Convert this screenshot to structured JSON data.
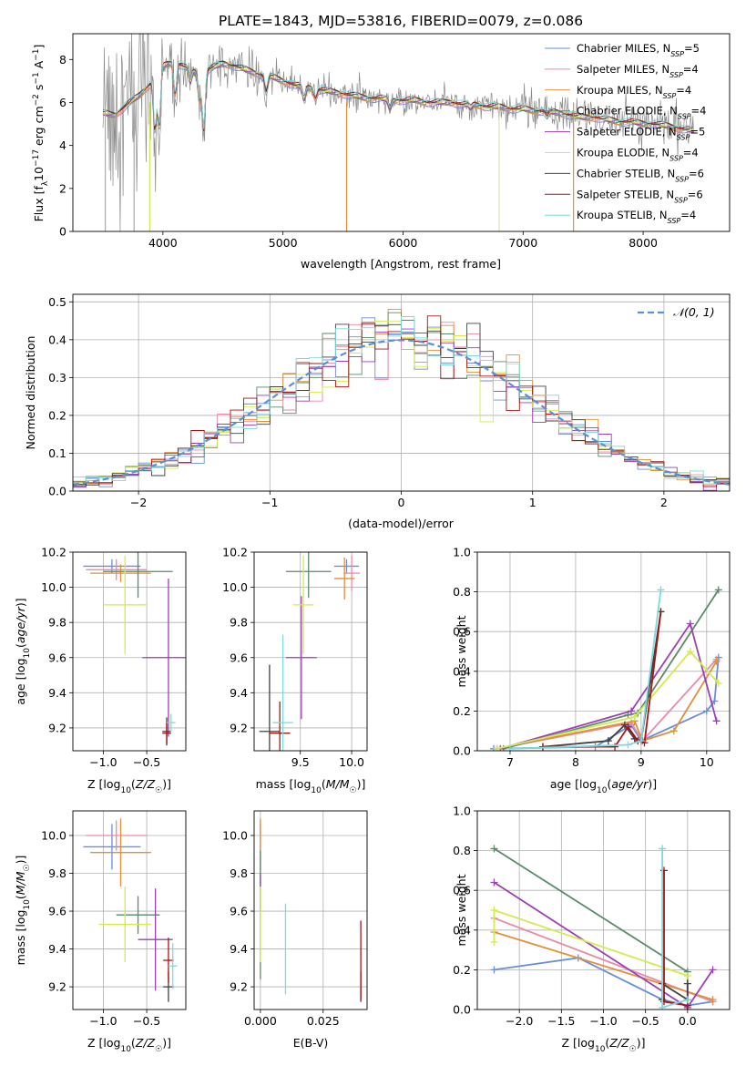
{
  "figure_title": "PLATE=1843, MJD=53816, FIBERID=0079, z=0.086",
  "colors": {
    "Chabrier MILES": "#6a8fd8",
    "Salpeter MILES": "#e98aa8",
    "Kroupa MILES": "#e0903a",
    "Chabrier ELODIE": "#5a8a6a",
    "Salpeter ELODIE": "#9b3fb5",
    "Kroupa ELODIE": "#d4ea4e",
    "Chabrier STELIB": "#404040",
    "Salpeter STELIB": "#a31515",
    "Kroupa STELIB": "#7fd8dc",
    "data": "#8a8a8a",
    "normal": "#5b8fd8"
  },
  "chart_data": [
    {
      "id": "spectrum",
      "type": "line",
      "xlabel": "wavelength [Angstrom, rest frame]",
      "ylabel": "Flux [f_λ 10^-17 erg cm^-2 s^-1 A^-1]",
      "xlim": [
        3250,
        8720
      ],
      "ylim": [
        0,
        9.2
      ],
      "xticks": [
        4000,
        5000,
        6000,
        7000,
        8000
      ],
      "yticks": [
        0,
        2,
        4,
        6,
        8
      ],
      "grid": false,
      "legend_position": "top-right",
      "legend": [
        {
          "label": "Chabrier MILES, N_SSP=5",
          "base": "Chabrier MILES, N",
          "sub": "SSP",
          "tail": "=5",
          "series": "Chabrier MILES"
        },
        {
          "label": "Salpeter MILES, N_SSP=4",
          "base": "Salpeter MILES, N",
          "sub": "SSP",
          "tail": "=4",
          "series": "Salpeter MILES"
        },
        {
          "label": "Kroupa MILES, N_SSP=4",
          "base": "Kroupa MILES, N",
          "sub": "SSP",
          "tail": "=4",
          "series": "Kroupa MILES"
        },
        {
          "label": "Chabrier ELODIE, N_SSP=4",
          "base": "Chabrier ELODIE, N",
          "sub": "SSP",
          "tail": "=4",
          "series": "Chabrier ELODIE"
        },
        {
          "label": "Salpeter ELODIE, N_SSP=5",
          "base": "Salpeter ELODIE, N",
          "sub": "SSP",
          "tail": "=5",
          "series": "Salpeter ELODIE"
        },
        {
          "label": "Kroupa ELODIE, N_SSP=4",
          "base": "Kroupa ELODIE, N",
          "sub": "SSP",
          "tail": "=4",
          "series": "Kroupa ELODIE"
        },
        {
          "label": "Chabrier STELIB, N_SSP=6",
          "base": "Chabrier STELIB, N",
          "sub": "SSP",
          "tail": "=6",
          "series": "Chabrier STELIB"
        },
        {
          "label": "Salpeter STELIB, N_SSP=6",
          "base": "Salpeter STELIB, N",
          "sub": "SSP",
          "tail": "=6",
          "series": "Salpeter STELIB"
        },
        {
          "label": "Kroupa STELIB, N_SSP=4",
          "base": "Kroupa STELIB, N",
          "sub": "SSP",
          "tail": "=4",
          "series": "Kroupa STELIB"
        }
      ],
      "model_continuum": [
        [
          3500,
          5.5
        ],
        [
          3600,
          5.4
        ],
        [
          3700,
          5.9
        ],
        [
          3800,
          6.3
        ],
        [
          3900,
          6.9
        ],
        [
          4000,
          7.7
        ],
        [
          4100,
          7.9
        ],
        [
          4200,
          7.6
        ],
        [
          4300,
          7.3
        ],
        [
          4400,
          7.6
        ],
        [
          4500,
          7.8
        ],
        [
          4600,
          7.7
        ],
        [
          4700,
          7.5
        ],
        [
          4800,
          7.3
        ],
        [
          4900,
          7.2
        ],
        [
          5000,
          7.0
        ],
        [
          5100,
          6.8
        ],
        [
          5200,
          6.7
        ],
        [
          5300,
          6.6
        ],
        [
          5400,
          6.5
        ],
        [
          5500,
          6.4
        ],
        [
          5600,
          6.3
        ],
        [
          5700,
          6.2
        ],
        [
          5800,
          6.2
        ],
        [
          5900,
          6.1
        ],
        [
          6000,
          6.1
        ],
        [
          6100,
          6.1
        ],
        [
          6200,
          6.0
        ],
        [
          6300,
          6.0
        ],
        [
          6400,
          6.0
        ],
        [
          6500,
          5.9
        ],
        [
          6600,
          5.9
        ],
        [
          6700,
          5.8
        ],
        [
          6800,
          5.8
        ],
        [
          6900,
          5.7
        ],
        [
          7000,
          5.7
        ],
        [
          7100,
          5.6
        ],
        [
          7200,
          5.6
        ],
        [
          7300,
          5.5
        ],
        [
          7400,
          5.4
        ],
        [
          7500,
          5.3
        ],
        [
          7600,
          5.3
        ],
        [
          7700,
          5.2
        ],
        [
          7800,
          5.1
        ],
        [
          7900,
          5.1
        ],
        [
          8000,
          5.0
        ],
        [
          8100,
          5.0
        ],
        [
          8200,
          4.9
        ],
        [
          8300,
          4.8
        ],
        [
          8400,
          4.7
        ]
      ],
      "absorption_features": [
        [
          3934,
          4.0
        ],
        [
          3969,
          4.2
        ],
        [
          4102,
          6.0
        ],
        [
          4227,
          6.8
        ],
        [
          4304,
          5.8
        ],
        [
          4340,
          4.0
        ],
        [
          4861,
          6.3
        ],
        [
          5175,
          6.0
        ],
        [
          5270,
          6.1
        ],
        [
          5890,
          5.6
        ],
        [
          6563,
          5.7
        ],
        [
          7200,
          5.3
        ]
      ],
      "masked_drops": [
        3520,
        3760,
        3890,
        5530,
        6800,
        7420
      ]
    },
    {
      "id": "residuals",
      "type": "bar",
      "xlabel": "(data-model)/error",
      "ylabel": "Normed distribution",
      "xlim": [
        -2.5,
        2.5
      ],
      "ylim": [
        0,
        0.52
      ],
      "xticks": [
        -2,
        -1,
        0,
        1,
        2
      ],
      "yticks": [
        0.0,
        0.1,
        0.2,
        0.3,
        0.4,
        0.5
      ],
      "grid": true,
      "bin_width": 0.1,
      "legend_position": "top-right",
      "legend": [
        {
          "label": "𝒩(0, 1)",
          "series": "normal"
        }
      ]
    },
    {
      "id": "age-vs-z",
      "type": "scatter",
      "xlabel": "Z [log10(Z/Z☉)]",
      "ylabel": "age  [log10(age/yr)]",
      "xlim": [
        -1.35,
        -0.05
      ],
      "ylim": [
        9.07,
        10.2
      ],
      "xticks": [
        -1.0,
        -0.5
      ],
      "yticks": [
        9.2,
        9.4,
        9.6,
        9.8,
        10.0,
        10.2
      ],
      "grid": true,
      "points": [
        {
          "series": "Chabrier MILES",
          "x": -0.9,
          "y": 10.12,
          "xerr": 0.33,
          "yerr": 0.04
        },
        {
          "series": "Salpeter MILES",
          "x": -0.85,
          "y": 10.1,
          "xerr": 0.35,
          "yerr": 0.06
        },
        {
          "series": "Kroupa MILES",
          "x": -0.8,
          "y": 10.08,
          "xerr": 0.35,
          "yerr": 0.05
        },
        {
          "series": "Chabrier ELODIE",
          "x": -0.6,
          "y": 10.09,
          "xerr": 0.4,
          "yerr": 0.15
        },
        {
          "series": "Salpeter ELODIE",
          "x": -0.25,
          "y": 9.6,
          "xerr": 0.3,
          "yerr": 0.45
        },
        {
          "series": "Kroupa ELODIE",
          "x": -0.75,
          "y": 9.9,
          "xerr": 0.25,
          "yerr": 0.28
        },
        {
          "series": "Chabrier STELIB",
          "x": -0.27,
          "y": 9.18,
          "xerr": 0.05,
          "yerr": 0.08
        },
        {
          "series": "Salpeter STELIB",
          "x": -0.27,
          "y": 9.17,
          "xerr": 0.05,
          "yerr": 0.06
        },
        {
          "series": "Kroupa STELIB",
          "x": -0.22,
          "y": 9.23,
          "xerr": 0.05,
          "yerr": 0.05
        }
      ]
    },
    {
      "id": "age-vs-mass",
      "type": "scatter",
      "xlabel": "mass [log10(M/M☉)]",
      "ylabel": "",
      "xlim": [
        9.05,
        10.15
      ],
      "ylim": [
        9.07,
        10.2
      ],
      "xticks": [
        9.5,
        10.0
      ],
      "yticks": [
        9.2,
        9.4,
        9.6,
        9.8,
        10.0,
        10.2
      ],
      "grid": true,
      "points": [
        {
          "series": "Chabrier MILES",
          "x": 9.95,
          "y": 10.12,
          "xerr": 0.12,
          "yerr": 0.04
        },
        {
          "series": "Salpeter MILES",
          "x": 10.0,
          "y": 10.08,
          "xerr": 0.08,
          "yerr": 0.1
        },
        {
          "series": "Kroupa MILES",
          "x": 9.93,
          "y": 10.05,
          "xerr": 0.1,
          "yerr": 0.12
        },
        {
          "series": "Chabrier ELODIE",
          "x": 9.58,
          "y": 10.09,
          "xerr": 0.22,
          "yerr": 0.15
        },
        {
          "series": "Salpeter ELODIE",
          "x": 9.51,
          "y": 9.6,
          "xerr": 0.15,
          "yerr": 0.35
        },
        {
          "series": "Kroupa ELODIE",
          "x": 9.53,
          "y": 9.9,
          "xerr": 0.1,
          "yerr": 0.28
        },
        {
          "series": "Chabrier STELIB",
          "x": 9.2,
          "y": 9.18,
          "xerr": 0.1,
          "yerr": 0.38
        },
        {
          "series": "Salpeter STELIB",
          "x": 9.3,
          "y": 9.17,
          "xerr": 0.1,
          "yerr": 0.18
        },
        {
          "series": "Kroupa STELIB",
          "x": 9.33,
          "y": 9.23,
          "xerr": 0.1,
          "yerr": 0.5
        }
      ]
    },
    {
      "id": "weight-vs-age",
      "type": "line",
      "xlabel": "age  [log10(age/yr)]",
      "ylabel": "mass weight",
      "xlim": [
        6.5,
        10.35
      ],
      "ylim": [
        0,
        1.0
      ],
      "xticks": [
        7,
        8,
        9,
        10
      ],
      "yticks": [
        0.0,
        0.2,
        0.4,
        0.6,
        0.8,
        1.0
      ],
      "grid": true,
      "series": [
        {
          "name": "Chabrier MILES",
          "x": [
            6.75,
            8.3,
            8.85,
            9.0,
            10.0,
            10.12,
            10.18
          ],
          "y": [
            0.01,
            0.02,
            0.13,
            0.05,
            0.2,
            0.25,
            0.47
          ]
        },
        {
          "name": "Salpeter MILES",
          "x": [
            6.8,
            8.85,
            9.02,
            10.15
          ],
          "y": [
            0.01,
            0.14,
            0.05,
            0.46
          ]
        },
        {
          "name": "Kroupa MILES",
          "x": [
            6.8,
            8.9,
            9.02,
            9.5,
            10.15
          ],
          "y": [
            0.01,
            0.15,
            0.05,
            0.1,
            0.45
          ]
        },
        {
          "name": "Chabrier ELODIE",
          "x": [
            6.9,
            8.8,
            8.95,
            10.18
          ],
          "y": [
            0.01,
            0.18,
            0.19,
            0.81
          ]
        },
        {
          "name": "Salpeter ELODIE",
          "x": [
            6.85,
            8.85,
            9.75,
            10.15
          ],
          "y": [
            0.01,
            0.2,
            0.64,
            0.15
          ]
        },
        {
          "name": "Kroupa ELODIE",
          "x": [
            6.8,
            8.9,
            9.75,
            10.18
          ],
          "y": [
            0.01,
            0.17,
            0.5,
            0.34
          ]
        },
        {
          "name": "Chabrier STELIB",
          "x": [
            7.5,
            8.5,
            8.75,
            8.9,
            9.0,
            9.3
          ],
          "y": [
            0.02,
            0.05,
            0.13,
            0.06,
            0.05,
            0.7
          ]
        },
        {
          "name": "Salpeter STELIB",
          "x": [
            7.5,
            8.6,
            8.8,
            8.95,
            9.05,
            9.3
          ],
          "y": [
            0.02,
            0.02,
            0.12,
            0.05,
            0.04,
            0.7
          ]
        },
        {
          "name": "Kroupa STELIB",
          "x": [
            7.0,
            8.8,
            9.0,
            9.3
          ],
          "y": [
            0.01,
            0.03,
            0.05,
            0.81
          ]
        }
      ]
    },
    {
      "id": "mass-vs-z",
      "type": "scatter",
      "xlabel": "Z [log10(Z/Z☉)]",
      "ylabel": "mass [log10(M/M☉)]",
      "xlim": [
        -1.35,
        -0.05
      ],
      "ylim": [
        9.08,
        10.13
      ],
      "xticks": [
        -1.0,
        -0.5
      ],
      "yticks": [
        9.2,
        9.4,
        9.6,
        9.8,
        10.0
      ],
      "grid": true,
      "points": [
        {
          "series": "Chabrier MILES",
          "x": -0.9,
          "y": 9.94,
          "xerr": 0.33,
          "yerr": 0.12
        },
        {
          "series": "Salpeter MILES",
          "x": -0.85,
          "y": 10.0,
          "xerr": 0.35,
          "yerr": 0.08
        },
        {
          "series": "Kroupa MILES",
          "x": -0.8,
          "y": 9.91,
          "xerr": 0.35,
          "yerr": 0.18
        },
        {
          "series": "Chabrier ELODIE",
          "x": -0.6,
          "y": 9.58,
          "xerr": 0.25,
          "yerr": 0.1
        },
        {
          "series": "Salpeter ELODIE",
          "x": -0.4,
          "y": 9.45,
          "xerr": 0.2,
          "yerr": 0.27
        },
        {
          "series": "Kroupa ELODIE",
          "x": -0.75,
          "y": 9.53,
          "xerr": 0.3,
          "yerr": 0.2
        },
        {
          "series": "Chabrier STELIB",
          "x": -0.25,
          "y": 9.2,
          "xerr": 0.06,
          "yerr": 0.08
        },
        {
          "series": "Salpeter STELIB",
          "x": -0.25,
          "y": 9.34,
          "xerr": 0.06,
          "yerr": 0.12
        },
        {
          "series": "Kroupa STELIB",
          "x": -0.2,
          "y": 9.31,
          "xerr": 0.05,
          "yerr": 0.12
        }
      ]
    },
    {
      "id": "mass-vs-ebv",
      "type": "scatter",
      "xlabel": "E(B-V)",
      "ylabel": "",
      "xlim": [
        -0.0025,
        0.0425
      ],
      "ylim": [
        9.08,
        10.13
      ],
      "xticks": [
        0.0,
        0.025
      ],
      "xtick_labels": [
        "0.000",
        "0.025"
      ],
      "yticks": [
        9.2,
        9.4,
        9.6,
        9.8,
        10.0
      ],
      "grid": true,
      "points": [
        {
          "series": "Chabrier MILES",
          "x": 0.0,
          "y": 9.94,
          "xerr": 0,
          "yerr": 0.12
        },
        {
          "series": "Salpeter MILES",
          "x": 0.0,
          "y": 10.0,
          "xerr": 0,
          "yerr": 0.08
        },
        {
          "series": "Kroupa MILES",
          "x": 0.0,
          "y": 9.91,
          "xerr": 0,
          "yerr": 0.18
        },
        {
          "series": "Chabrier ELODIE",
          "x": 0.0,
          "y": 9.58,
          "xerr": 0,
          "yerr": 0.34
        },
        {
          "series": "Salpeter ELODIE",
          "x": 0.0,
          "y": 9.7,
          "xerr": 0,
          "yerr": 0.1
        },
        {
          "series": "Kroupa ELODIE",
          "x": 0.0,
          "y": 9.53,
          "xerr": 0,
          "yerr": 0.2
        },
        {
          "series": "Chabrier STELIB",
          "x": 0.04,
          "y": 9.2,
          "xerr": 0,
          "yerr": 0.08
        },
        {
          "series": "Salpeter STELIB",
          "x": 0.04,
          "y": 9.34,
          "xerr": 0,
          "yerr": 0.21
        },
        {
          "series": "Kroupa STELIB",
          "x": 0.01,
          "y": 9.4,
          "xerr": 0,
          "yerr": 0.24
        }
      ]
    },
    {
      "id": "weight-vs-z",
      "type": "line",
      "xlabel": "Z [log10(Z/Z☉)]",
      "ylabel": "mass weight",
      "xlim": [
        -2.5,
        0.5
      ],
      "ylim": [
        0,
        1.0
      ],
      "xticks": [
        -2.0,
        -1.5,
        -1.0,
        -0.5,
        0.0
      ],
      "yticks": [
        0.0,
        0.2,
        0.4,
        0.6,
        0.8,
        1.0
      ],
      "grid": true,
      "series": [
        {
          "name": "Chabrier MILES",
          "x": [
            -2.3,
            -1.3,
            -0.3,
            0.0,
            0.3
          ],
          "y": [
            0.2,
            0.26,
            0.05,
            0.02,
            0.04
          ]
        },
        {
          "name": "Salpeter MILES",
          "x": [
            -2.3,
            0.3
          ],
          "y": [
            0.46,
            0.04
          ]
        },
        {
          "name": "Kroupa MILES",
          "x": [
            -2.3,
            0.3
          ],
          "y": [
            0.39,
            0.05
          ]
        },
        {
          "name": "Chabrier ELODIE",
          "x": [
            -2.3,
            0.0,
            0.0
          ],
          "y": [
            0.81,
            0.19,
            0.0
          ]
        },
        {
          "name": "Salpeter ELODIE",
          "x": [
            -2.3,
            0.0,
            0.3
          ],
          "y": [
            0.64,
            0.01,
            0.2
          ]
        },
        {
          "name": "Kroupa ELODIE",
          "x": [
            -2.3,
            -2.3,
            0.0
          ],
          "y": [
            0.34,
            0.5,
            0.17
          ]
        },
        {
          "name": "Chabrier STELIB",
          "x": [
            -0.3,
            -0.3,
            0.0,
            0.0
          ],
          "y": [
            0.05,
            0.13,
            0.05,
            0.13
          ]
        },
        {
          "name": "Salpeter STELIB",
          "x": [
            -0.28,
            -0.28,
            0.0
          ],
          "y": [
            0.7,
            0.04,
            0.02
          ]
        },
        {
          "name": "Kroupa STELIB",
          "x": [
            -0.3,
            -0.3,
            0.0
          ],
          "y": [
            0.81,
            0.01,
            0.05
          ]
        }
      ]
    }
  ]
}
